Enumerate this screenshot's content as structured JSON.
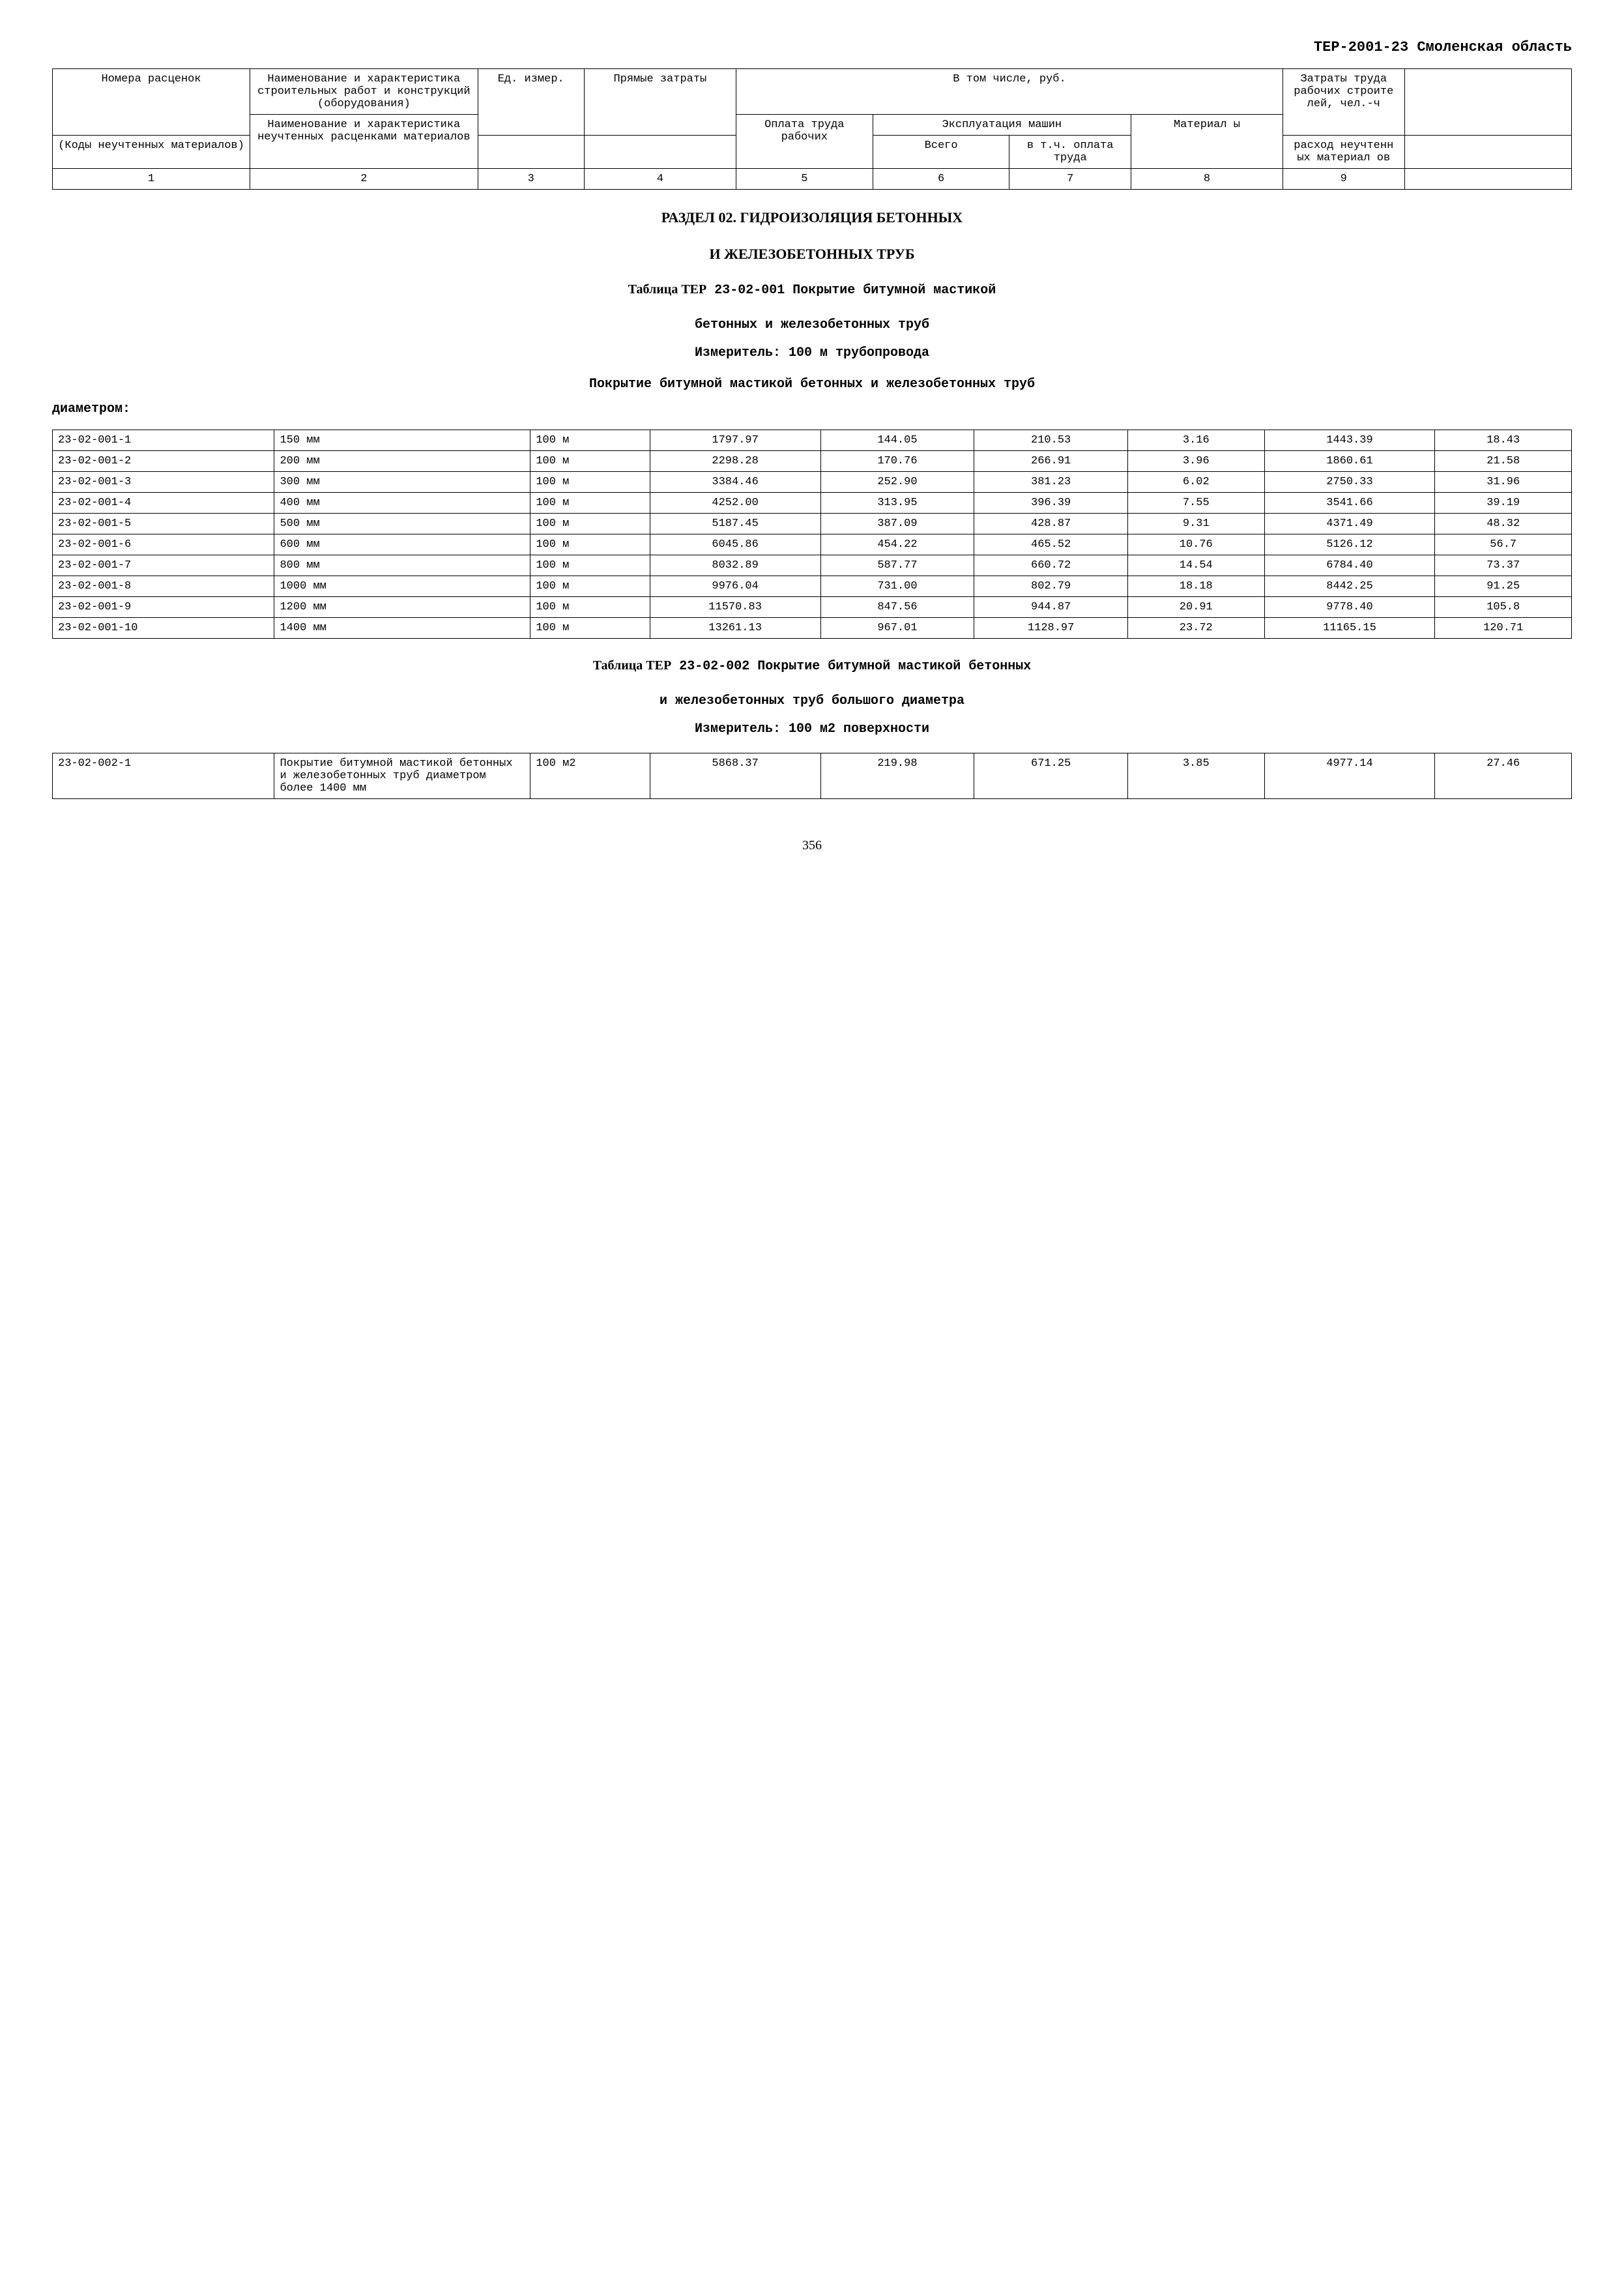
{
  "doc_header": "ТЕР-2001-23 Смоленская область",
  "header_table": {
    "r1c1": "Номера расценок",
    "r1c2": "Наименование и характеристика строительных работ и конструкций (оборудования)",
    "r1c3": "Ед. измер.",
    "r1c4": "Прямые затраты",
    "r1c5": "В том числе, руб.",
    "r1c6": "Затраты труда рабочих строите лей, чел.-ч",
    "r2c5": "Оплата труда рабочих",
    "r2c6": "Эксплуатация машин",
    "r2c7": "Материал ы",
    "r3c1": "(Коды неучтенных материалов)",
    "r3c2": "Наименование и характеристика неучтенных расценками материалов",
    "r3c6": "Всего",
    "r3c7": "в т.ч. оплата труда",
    "r3c8": "расход неучтенн ых материал ов",
    "num1": "1",
    "num2": "2",
    "num3": "3",
    "num4": "4",
    "num5": "5",
    "num6": "6",
    "num7": "7",
    "num8": "8",
    "num9": "9"
  },
  "section": {
    "title_line1": "РАЗДЕЛ 02.  ГИДРОИЗОЛЯЦИЯ БЕТОННЫХ",
    "title_line2": "И ЖЕЛЕЗОБЕТОННЫХ ТРУБ"
  },
  "table1": {
    "title_prefix": "Таблица ТЕР",
    "title_code": " 23-02-001   Покрытие битумной мастикой",
    "title_line2": "бетонных и железобетонных труб",
    "measurer": "Измеритель: 100 м трубопровода",
    "subheading": "Покрытие битумной мастикой бетонных и железобетонных труб",
    "subheading2": "диаметром:",
    "rows": [
      {
        "code": "23-02-001-1",
        "desc": "150 мм",
        "unit": "100 м",
        "c4": "1797.97",
        "c5": "144.05",
        "c6": "210.53",
        "c7": "3.16",
        "c8": "1443.39",
        "c9": "18.43"
      },
      {
        "code": "23-02-001-2",
        "desc": "200 мм",
        "unit": "100 м",
        "c4": "2298.28",
        "c5": "170.76",
        "c6": "266.91",
        "c7": "3.96",
        "c8": "1860.61",
        "c9": "21.58"
      },
      {
        "code": "23-02-001-3",
        "desc": "300 мм",
        "unit": "100 м",
        "c4": "3384.46",
        "c5": "252.90",
        "c6": "381.23",
        "c7": "6.02",
        "c8": "2750.33",
        "c9": "31.96"
      },
      {
        "code": "23-02-001-4",
        "desc": "400 мм",
        "unit": "100 м",
        "c4": "4252.00",
        "c5": "313.95",
        "c6": "396.39",
        "c7": "7.55",
        "c8": "3541.66",
        "c9": "39.19"
      },
      {
        "code": "23-02-001-5",
        "desc": "500 мм",
        "unit": "100 м",
        "c4": "5187.45",
        "c5": "387.09",
        "c6": "428.87",
        "c7": "9.31",
        "c8": "4371.49",
        "c9": "48.32"
      },
      {
        "code": "23-02-001-6",
        "desc": "600 мм",
        "unit": "100 м",
        "c4": "6045.86",
        "c5": "454.22",
        "c6": "465.52",
        "c7": "10.76",
        "c8": "5126.12",
        "c9": "56.7"
      },
      {
        "code": "23-02-001-7",
        "desc": "800 мм",
        "unit": "100 м",
        "c4": "8032.89",
        "c5": "587.77",
        "c6": "660.72",
        "c7": "14.54",
        "c8": "6784.40",
        "c9": "73.37"
      },
      {
        "code": "23-02-001-8",
        "desc": "1000 мм",
        "unit": "100 м",
        "c4": "9976.04",
        "c5": "731.00",
        "c6": "802.79",
        "c7": "18.18",
        "c8": "8442.25",
        "c9": "91.25"
      },
      {
        "code": "23-02-001-9",
        "desc": "1200 мм",
        "unit": "100 м",
        "c4": "11570.83",
        "c5": "847.56",
        "c6": "944.87",
        "c7": "20.91",
        "c8": "9778.40",
        "c9": "105.8"
      },
      {
        "code": "23-02-001-10",
        "desc": "1400 мм",
        "unit": "100 м",
        "c4": "13261.13",
        "c5": "967.01",
        "c6": "1128.97",
        "c7": "23.72",
        "c8": "11165.15",
        "c9": "120.71"
      }
    ]
  },
  "table2": {
    "title_prefix": "Таблица ТЕР",
    "title_code": " 23-02-002 Покрытие битумной мастикой бетонных",
    "title_line2": "и железобетонных труб большого диаметра",
    "measurer": "Измеритель: 100 м2 поверхности",
    "rows": [
      {
        "code": "23-02-002-1",
        "desc": "Покрытие битумной мастикой бетонных и железобетонных труб диаметром более 1400 мм",
        "unit": "100 м2",
        "c4": "5868.37",
        "c5": "219.98",
        "c6": "671.25",
        "c7": "3.85",
        "c8": "4977.14",
        "c9": "27.46"
      }
    ]
  },
  "page_number": "356"
}
